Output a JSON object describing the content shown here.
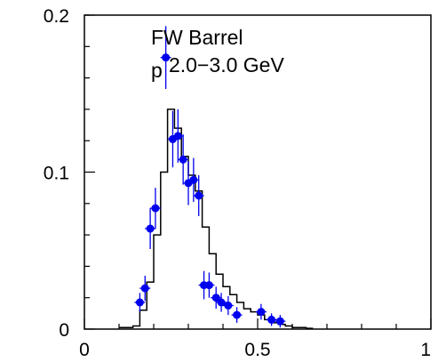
{
  "chart_data": {
    "type": "histogram-with-points",
    "annotations": [
      "FW Barrel",
      "p",
      "2.0−3.0 GeV"
    ],
    "xlabel": "",
    "ylabel": "",
    "xlim": [
      0,
      1.0
    ],
    "ylim": [
      0,
      0.2
    ],
    "x_ticks": [
      {
        "value": 0,
        "label": "0"
      },
      {
        "value": 0.5,
        "label": "0.5"
      },
      {
        "value": 1.0,
        "label": "1"
      }
    ],
    "y_ticks": [
      {
        "value": 0,
        "label": "0"
      },
      {
        "value": 0.1,
        "label": "0.1"
      },
      {
        "value": 0.2,
        "label": "0.2"
      }
    ],
    "histogram": {
      "bin_width": 0.02,
      "color": "#000000",
      "bins": [
        {
          "x": 0.1,
          "y": 0.001
        },
        {
          "x": 0.12,
          "y": 0.001
        },
        {
          "x": 0.14,
          "y": 0.002
        },
        {
          "x": 0.16,
          "y": 0.012
        },
        {
          "x": 0.18,
          "y": 0.03
        },
        {
          "x": 0.2,
          "y": 0.06
        },
        {
          "x": 0.22,
          "y": 0.1
        },
        {
          "x": 0.24,
          "y": 0.14
        },
        {
          "x": 0.26,
          "y": 0.128
        },
        {
          "x": 0.28,
          "y": 0.11
        },
        {
          "x": 0.3,
          "y": 0.098
        },
        {
          "x": 0.32,
          "y": 0.088
        },
        {
          "x": 0.34,
          "y": 0.065
        },
        {
          "x": 0.36,
          "y": 0.048
        },
        {
          "x": 0.38,
          "y": 0.035
        },
        {
          "x": 0.4,
          "y": 0.027
        },
        {
          "x": 0.42,
          "y": 0.022
        },
        {
          "x": 0.44,
          "y": 0.017
        },
        {
          "x": 0.46,
          "y": 0.013
        },
        {
          "x": 0.48,
          "y": 0.011
        },
        {
          "x": 0.5,
          "y": 0.009
        },
        {
          "x": 0.52,
          "y": 0.006
        },
        {
          "x": 0.54,
          "y": 0.004
        },
        {
          "x": 0.56,
          "y": 0.003
        },
        {
          "x": 0.58,
          "y": 0.002
        },
        {
          "x": 0.6,
          "y": 0.001
        },
        {
          "x": 0.62,
          "y": 0.001
        },
        {
          "x": 0.64,
          "y": 0.0005
        }
      ]
    },
    "points": {
      "color": "#0000ee",
      "values": [
        {
          "x": 0.16,
          "y": 0.017,
          "err": 0.006
        },
        {
          "x": 0.175,
          "y": 0.026,
          "err": 0.008
        },
        {
          "x": 0.19,
          "y": 0.064,
          "err": 0.013
        },
        {
          "x": 0.205,
          "y": 0.077,
          "err": 0.013
        },
        {
          "x": 0.235,
          "y": 0.173,
          "err": 0.02
        },
        {
          "x": 0.255,
          "y": 0.121,
          "err": 0.018
        },
        {
          "x": 0.27,
          "y": 0.123,
          "err": 0.017
        },
        {
          "x": 0.285,
          "y": 0.108,
          "err": 0.016
        },
        {
          "x": 0.3,
          "y": 0.093,
          "err": 0.014
        },
        {
          "x": 0.315,
          "y": 0.095,
          "err": 0.014
        },
        {
          "x": 0.33,
          "y": 0.085,
          "err": 0.013
        },
        {
          "x": 0.345,
          "y": 0.028,
          "err": 0.009
        },
        {
          "x": 0.36,
          "y": 0.028,
          "err": 0.008
        },
        {
          "x": 0.38,
          "y": 0.02,
          "err": 0.007
        },
        {
          "x": 0.395,
          "y": 0.017,
          "err": 0.006
        },
        {
          "x": 0.415,
          "y": 0.015,
          "err": 0.006
        },
        {
          "x": 0.44,
          "y": 0.009,
          "err": 0.005
        },
        {
          "x": 0.51,
          "y": 0.011,
          "err": 0.005
        },
        {
          "x": 0.54,
          "y": 0.006,
          "err": 0.004
        },
        {
          "x": 0.565,
          "y": 0.005,
          "err": 0.004
        }
      ]
    }
  }
}
